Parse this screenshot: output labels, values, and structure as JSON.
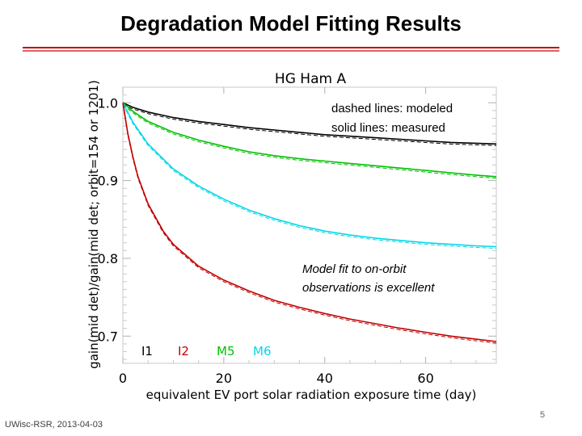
{
  "slide": {
    "title": "Degradation Model Fitting Results",
    "footer_left": "UWisc-RSR, 2013-04-03",
    "page_number": "5"
  },
  "chart_data": {
    "type": "line",
    "title": "HG Ham A",
    "xlabel": "equivalent EV port solar radiation exposure time (day)",
    "ylabel": "gain(mid det)/gain(mid det; orbit=154 or 1201)",
    "xlim": [
      0,
      74
    ],
    "ylim": [
      0.665,
      1.02
    ],
    "xticks": [
      0,
      20,
      40,
      60
    ],
    "yticks": [
      0.7,
      0.8,
      0.9,
      1.0
    ],
    "ytick_labels": [
      "0.7",
      "0.8",
      "0.9",
      "1.0"
    ],
    "legend": [
      "I1",
      "I2",
      "M5",
      "M6"
    ],
    "annotations": [
      {
        "lines": [
          "dashed lines: modeled",
          "solid lines: measured"
        ]
      },
      {
        "lines": [
          "Model fit to on-orbit",
          "observations is excellent"
        ]
      }
    ],
    "series": [
      {
        "name": "I1",
        "color": "#000000",
        "x": [
          0,
          2,
          5,
          10,
          15,
          20,
          25,
          30,
          35,
          40,
          45,
          50,
          55,
          60,
          65,
          70,
          74
        ],
        "y": [
          1.0,
          0.994,
          0.988,
          0.981,
          0.976,
          0.972,
          0.968,
          0.965,
          0.962,
          0.959,
          0.957,
          0.955,
          0.953,
          0.951,
          0.949,
          0.948,
          0.947
        ]
      },
      {
        "name": "M5",
        "color": "#00c000",
        "x": [
          0,
          2,
          5,
          10,
          15,
          20,
          25,
          30,
          35,
          40,
          45,
          50,
          55,
          60,
          65,
          70,
          74
        ],
        "y": [
          1.0,
          0.989,
          0.976,
          0.962,
          0.952,
          0.944,
          0.937,
          0.932,
          0.928,
          0.925,
          0.922,
          0.919,
          0.916,
          0.913,
          0.91,
          0.907,
          0.905
        ]
      },
      {
        "name": "M6",
        "color": "#00d8e8",
        "x": [
          0,
          2,
          5,
          10,
          15,
          20,
          25,
          30,
          35,
          40,
          45,
          50,
          55,
          60,
          65,
          70,
          74
        ],
        "y": [
          1.0,
          0.975,
          0.947,
          0.915,
          0.893,
          0.876,
          0.862,
          0.851,
          0.842,
          0.835,
          0.83,
          0.826,
          0.823,
          0.82,
          0.818,
          0.816,
          0.815
        ]
      },
      {
        "name": "I2",
        "color": "#c00000",
        "x": [
          0,
          1,
          2,
          3,
          5,
          8,
          10,
          15,
          20,
          25,
          30,
          35,
          40,
          45,
          50,
          55,
          60,
          65,
          70,
          74
        ],
        "y": [
          1.0,
          0.96,
          0.93,
          0.905,
          0.87,
          0.835,
          0.818,
          0.79,
          0.772,
          0.758,
          0.746,
          0.737,
          0.729,
          0.722,
          0.716,
          0.71,
          0.705,
          0.7,
          0.696,
          0.693
        ]
      }
    ]
  }
}
